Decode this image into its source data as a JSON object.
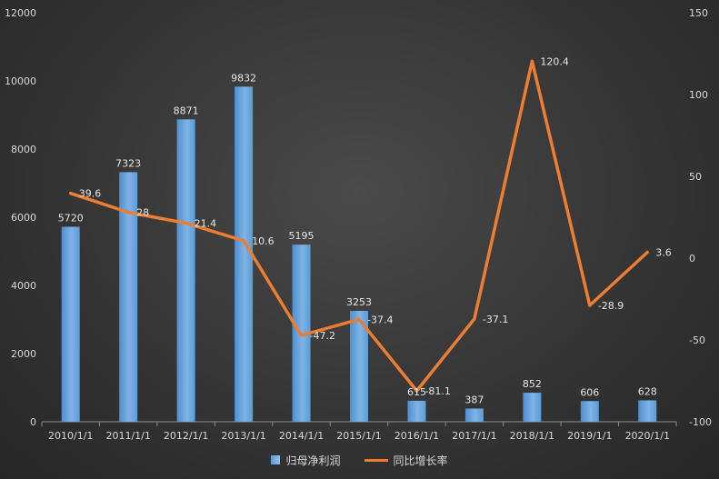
{
  "chart_data": {
    "type": "bar",
    "categories": [
      "2010/1/1",
      "2011/1/1",
      "2012/1/1",
      "2013/1/1",
      "2014/1/1",
      "2015/1/1",
      "2016/1/1",
      "2017/1/1",
      "2018/1/1",
      "2019/1/1",
      "2020/1/1"
    ],
    "series": [
      {
        "name": "归母净利润",
        "type": "bar",
        "axis": "left",
        "color": "#5b9bd5",
        "values": [
          5720,
          7323,
          8871,
          9832,
          5195,
          3253,
          615,
          387,
          852,
          606,
          628
        ],
        "labels": [
          "5720",
          "7323",
          "8871",
          "9832",
          "5195",
          "3253",
          "615",
          "387",
          "852",
          "606",
          "628"
        ]
      },
      {
        "name": "同比增长率",
        "type": "line",
        "axis": "right",
        "color": "#ed7d31",
        "values": [
          39.6,
          28,
          21.4,
          10.6,
          -47.2,
          -37.4,
          -81.1,
          -37.1,
          120.4,
          -28.9,
          3.6
        ],
        "labels": [
          "39.6",
          "28",
          "21.4",
          "10.6",
          "-47.2",
          "-37.4",
          "-81.1",
          "-37.1",
          "120.4",
          "-28.9",
          "3.6"
        ]
      }
    ],
    "y_left": {
      "ylim": [
        0,
        12000
      ],
      "ticks": [
        0,
        2000,
        4000,
        6000,
        8000,
        10000,
        12000
      ],
      "tick_labels": [
        "0",
        "2000",
        "4000",
        "6000",
        "8000",
        "10000",
        "12000"
      ]
    },
    "y_right": {
      "ylim": [
        -100,
        150
      ],
      "ticks": [
        -100,
        -50,
        0,
        50,
        100,
        150
      ],
      "tick_labels": [
        "-100",
        "-50",
        "0",
        "50",
        "100",
        "150"
      ]
    },
    "grid": false,
    "legend_position": "bottom"
  }
}
